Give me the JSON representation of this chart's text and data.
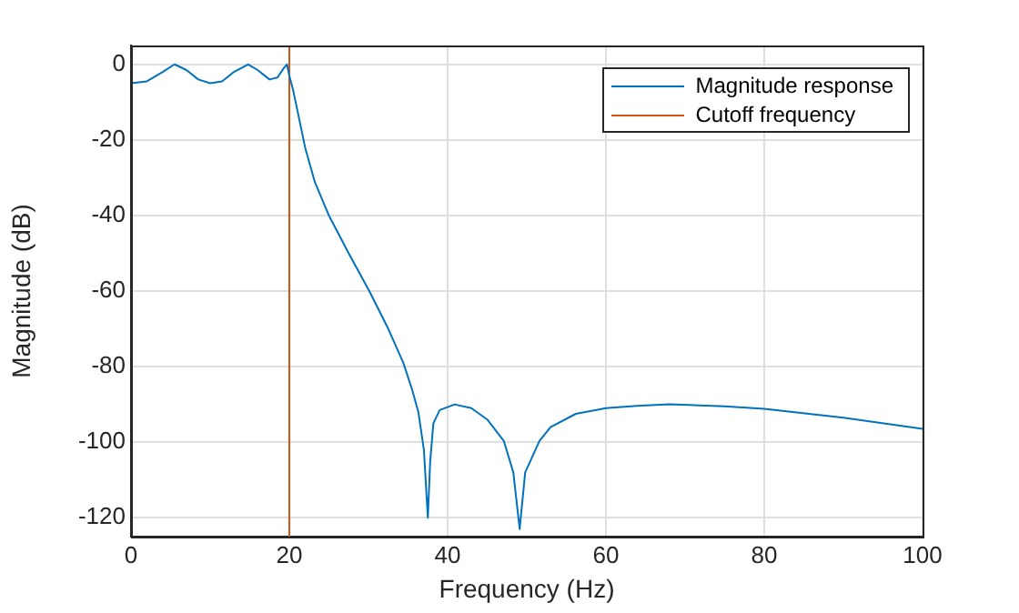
{
  "chart_data": {
    "type": "line",
    "xlabel": "Frequency (Hz)",
    "ylabel": "Magnitude (dB)",
    "xlim": [
      0,
      100
    ],
    "ylim": [
      -125,
      5
    ],
    "xticks": [
      0,
      20,
      40,
      60,
      80,
      100
    ],
    "yticks": [
      -120,
      -100,
      -80,
      -60,
      -40,
      -20,
      0
    ],
    "grid": true,
    "legend": "top right",
    "line_style": "solid",
    "marker": "none",
    "series": [
      {
        "name": "Magnitude response",
        "color": "#0072bd",
        "x": [
          0,
          2,
          4,
          5.5,
          7,
          8.5,
          10,
          11.5,
          13,
          14.8,
          16,
          17.5,
          18.5,
          19.3,
          19.7,
          20,
          20.5,
          21,
          22,
          23.2,
          25,
          27.5,
          30.1,
          32.5,
          34.4,
          35.5,
          36.3,
          37,
          37.5,
          37.8,
          38.2,
          39,
          40.9,
          43,
          45,
          47.1,
          48.3,
          49.1,
          49.8,
          51.6,
          53,
          56.2,
          60,
          63.9,
          68,
          75,
          80,
          90,
          100
        ],
        "values": [
          -5,
          -4.5,
          -2,
          0,
          -1.5,
          -4,
          -5,
          -4.5,
          -2,
          0,
          -1.5,
          -4,
          -3.5,
          -1,
          0,
          -3,
          -7,
          -12,
          -22,
          -31,
          -40,
          -50,
          -60,
          -70,
          -79,
          -86,
          -92,
          -102,
          -120,
          -105,
          -95,
          -91.5,
          -90,
          -91,
          -94,
          -99.7,
          -108,
          -123,
          -108,
          -99.7,
          -96,
          -92.5,
          -91,
          -90.4,
          -90,
          -90.5,
          -91.2,
          -93.5,
          -96.5
        ]
      },
      {
        "name": "Cutoff frequency",
        "color": "#d95319",
        "x": [
          20,
          20
        ],
        "values": [
          5,
          -125
        ]
      }
    ]
  }
}
